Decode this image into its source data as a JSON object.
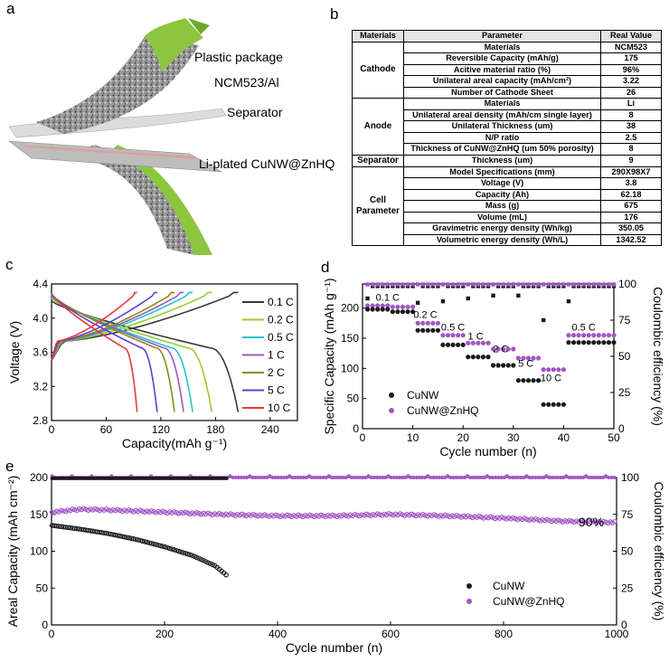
{
  "panels": {
    "a": "a",
    "b": "b",
    "c": "c",
    "d": "d",
    "e": "e"
  },
  "illustration": {
    "labels": [
      "Plastic package",
      "NCM523/Al",
      "Separator",
      "Li-plated CuNW@ZnHQ"
    ],
    "colors": {
      "package": "#8cc63f",
      "cathode": "#8a8a8a",
      "separator": "#d8d8d8",
      "anode": "#b0b0b0"
    }
  },
  "table": {
    "headers": [
      "Materials",
      "Parameter",
      "Real Value"
    ],
    "groups": [
      {
        "name": "Cathode",
        "rows": [
          {
            "param": "Materials",
            "value": "NCM523"
          },
          {
            "param": "Reversible Capacity (mAh/g)",
            "value": "175"
          },
          {
            "param": "Acitive material ratio (%)",
            "value": "96%"
          },
          {
            "param": "Unilateral areal capacity (mAh/cm²)",
            "value": "3.22"
          },
          {
            "param": "Number of Cathode Sheet",
            "value": "26"
          }
        ]
      },
      {
        "name": "Anode",
        "rows": [
          {
            "param": "Materials",
            "value": "Li"
          },
          {
            "param": "Unilateral areal density (mAh/cm single layer)",
            "value": "8"
          },
          {
            "param": "Unilateral Thickness (um)",
            "value": "38"
          },
          {
            "param": "N/P ratio",
            "value": "2.5"
          },
          {
            "param": "Thickness of CuNW@ZnHQ (um 50% porosity)",
            "value": "8"
          }
        ]
      },
      {
        "name": "Separator",
        "rows": [
          {
            "param": "Thickness (um)",
            "value": "9"
          }
        ]
      },
      {
        "name": "Cell Parameter",
        "rows": [
          {
            "param": "Model Specifications (mm)",
            "value": "290X98X7"
          },
          {
            "param": "Voltage (V)",
            "value": "3.8"
          },
          {
            "param": "Capacity (Ah)",
            "value": "62.18"
          },
          {
            "param": "Mass (g)",
            "value": "675"
          },
          {
            "param": "Volume (mL)",
            "value": "176"
          },
          {
            "param": "Gravimetric energy density (Wh/kg)",
            "value": "350.05"
          },
          {
            "param": "Volumetric energy density  (Wh/L)",
            "value": "1342.52"
          }
        ]
      }
    ]
  },
  "chart_data": [
    {
      "id": "c",
      "type": "line",
      "xlabel": "Capacity(mAh g⁻¹)",
      "ylabel": "Voltage (V)",
      "xlim": [
        0,
        270
      ],
      "ylim": [
        2.8,
        4.4
      ],
      "xticks": [
        0,
        60,
        120,
        180,
        240
      ],
      "yticks": [
        2.8,
        3.2,
        3.6,
        4.0,
        4.4
      ],
      "legend_position": "right",
      "series": [
        {
          "name": "0.1 C",
          "color": "#3a3a3a",
          "capacity": 205,
          "charge_end": 4.3,
          "discharge_start": 4.2
        },
        {
          "name": "0.2 C",
          "color": "#9acd32",
          "capacity": 176,
          "charge_end": 4.3,
          "discharge_start": 4.23
        },
        {
          "name": "0.5 C",
          "color": "#23c4d4",
          "capacity": 155,
          "charge_end": 4.3,
          "discharge_start": 4.25
        },
        {
          "name": "1 C",
          "color": "#9b59b6",
          "capacity": 145,
          "charge_end": 4.3,
          "discharge_start": 4.27
        },
        {
          "name": "2 C",
          "color": "#8b8b1a",
          "capacity": 135,
          "charge_end": 4.3,
          "discharge_start": 4.28
        },
        {
          "name": "5 C",
          "color": "#5b3fd6",
          "capacity": 116,
          "charge_end": 4.3,
          "discharge_start": 4.28
        },
        {
          "name": "10 C",
          "color": "#e8383d",
          "capacity": 94,
          "charge_end": 4.3,
          "discharge_start": 4.29
        }
      ]
    },
    {
      "id": "d",
      "type": "scatter",
      "xlabel": "Cycle number (n)",
      "ylabel": "Specific Capacity (mAh g⁻¹)",
      "y2label": "Coulombic efficiency (%)",
      "xlim": [
        0,
        50
      ],
      "ylim": [
        0,
        240
      ],
      "y2lim": [
        0,
        100
      ],
      "xticks": [
        0,
        10,
        20,
        30,
        40,
        50
      ],
      "yticks": [
        0,
        50,
        100,
        150,
        200
      ],
      "y2ticks": [
        0,
        25,
        50,
        75,
        100
      ],
      "rate_labels": [
        {
          "text": "0.1 C",
          "x": 5,
          "y": 212
        },
        {
          "text": "0.2 C",
          "x": 12.5,
          "y": 184
        },
        {
          "text": "0.5 C",
          "x": 18,
          "y": 163
        },
        {
          "text": "1 C",
          "x": 22.5,
          "y": 148
        },
        {
          "text": "2 C",
          "x": 27.5,
          "y": 127
        },
        {
          "text": "5 C",
          "x": 32.5,
          "y": 103
        },
        {
          "text": "10 C",
          "x": 37.5,
          "y": 79
        },
        {
          "text": "0.5 C",
          "x": 44,
          "y": 163
        }
      ],
      "segments": [
        {
          "from": 1,
          "to": 5,
          "cunw": 198,
          "znhq": 204
        },
        {
          "from": 6,
          "to": 10,
          "cunw": 194,
          "znhq": 202
        },
        {
          "from": 11,
          "to": 15,
          "cunw": 163,
          "znhq": 175
        },
        {
          "from": 16,
          "to": 20,
          "cunw": 139,
          "znhq": 155
        },
        {
          "from": 21,
          "to": 25,
          "cunw": 119,
          "znhq": 142
        },
        {
          "from": 26,
          "to": 30,
          "cunw": 105,
          "znhq": 132
        },
        {
          "from": 31,
          "to": 35,
          "cunw": 80,
          "znhq": 117
        },
        {
          "from": 36,
          "to": 40,
          "cunw": 40,
          "znhq": 98
        },
        {
          "from": 41,
          "to": 50,
          "cunw": 143,
          "znhq": 155
        }
      ],
      "ce_cunw_outliers": [
        {
          "x": 1,
          "y": 90
        },
        {
          "x": 11,
          "y": 87
        },
        {
          "x": 16,
          "y": 88
        },
        {
          "x": 21,
          "y": 90
        },
        {
          "x": 26,
          "y": 92
        },
        {
          "x": 31,
          "y": 92
        },
        {
          "x": 36,
          "y": 75
        },
        {
          "x": 41,
          "y": 88
        }
      ],
      "legend": [
        "CuNW",
        "CuNW@ZnHQ"
      ],
      "colors": {
        "cunw": "#1a1a1a",
        "znhq": "#a256c4"
      }
    },
    {
      "id": "e",
      "type": "scatter",
      "xlabel": "Cycle number (n)",
      "ylabel": "Areal Capacity (mAh cm⁻²)",
      "y2label": "Coulombic efficiency (%)",
      "xlim": [
        0,
        1000
      ],
      "ylim": [
        0,
        200
      ],
      "y2lim": [
        0,
        100
      ],
      "xticks": [
        0,
        200,
        400,
        600,
        800,
        1000
      ],
      "yticks": [
        0,
        50,
        100,
        150,
        200
      ],
      "y2ticks": [
        0,
        25,
        50,
        75,
        100
      ],
      "annotation": "90%",
      "cunw_capacity": [
        [
          1,
          135
        ],
        [
          50,
          130
        ],
        [
          100,
          124
        ],
        [
          150,
          116
        ],
        [
          200,
          106
        ],
        [
          250,
          94
        ],
        [
          290,
          80
        ],
        [
          312,
          66
        ]
      ],
      "znhq_capacity": [
        [
          1,
          153
        ],
        [
          50,
          157
        ],
        [
          100,
          156
        ],
        [
          200,
          153
        ],
        [
          300,
          150
        ],
        [
          400,
          148
        ],
        [
          500,
          148
        ],
        [
          600,
          150
        ],
        [
          700,
          148
        ],
        [
          800,
          145
        ],
        [
          900,
          141
        ],
        [
          1000,
          139
        ]
      ],
      "cunw_ce": 99.5,
      "znhq_ce": 100,
      "cunw_last_cycle": 312,
      "legend": [
        "CuNW",
        "CuNW@ZnHQ"
      ],
      "colors": {
        "cunw": "#1a1a1a",
        "znhq": "#a256c4"
      }
    }
  ]
}
